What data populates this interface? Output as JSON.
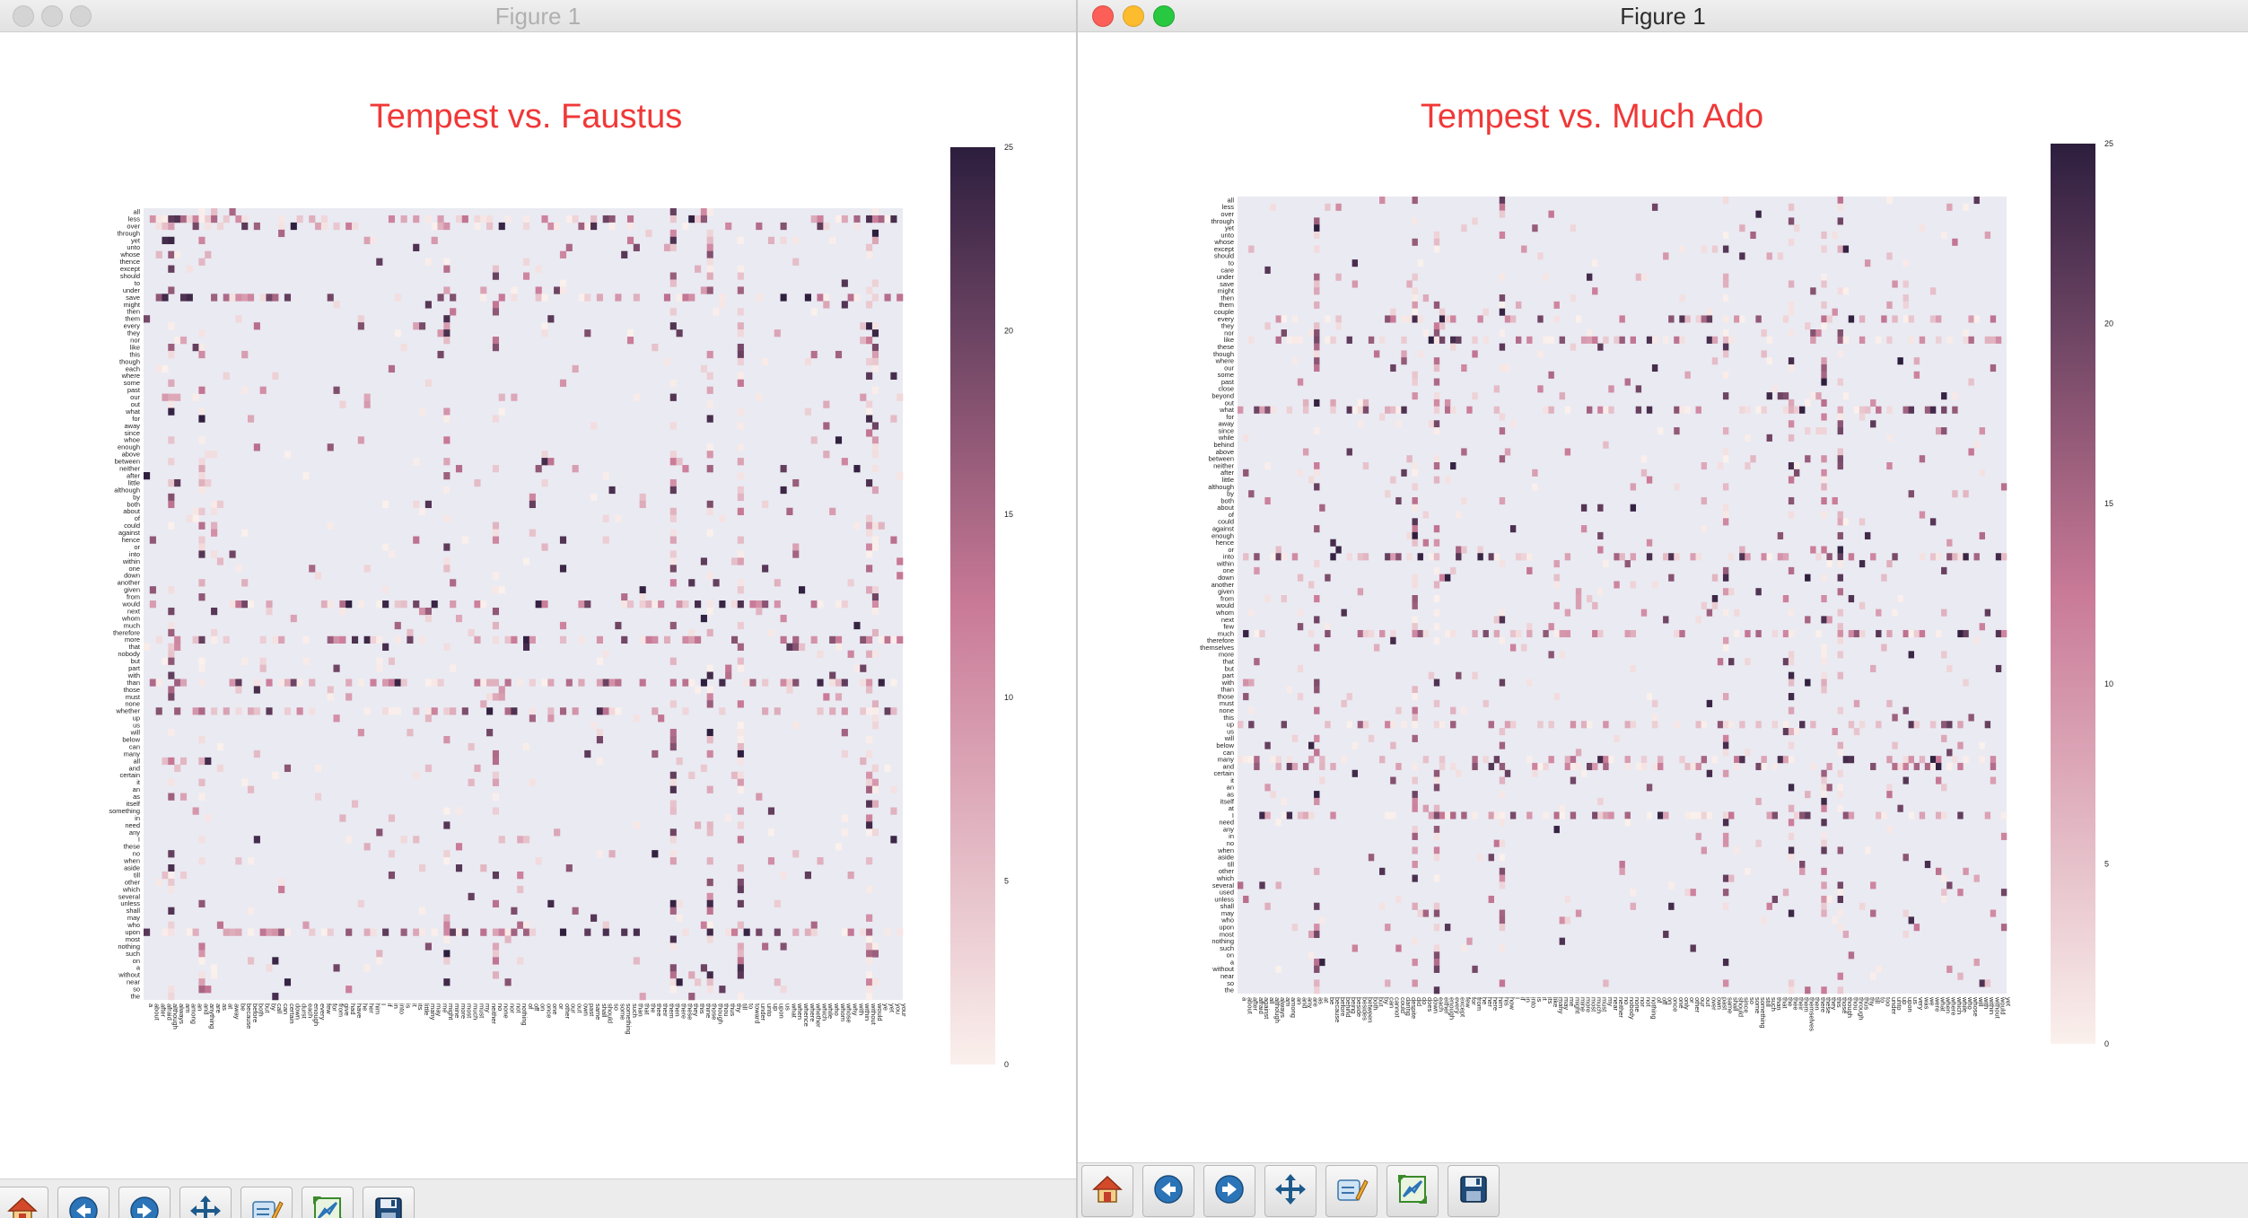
{
  "windows": [
    {
      "id": "left",
      "window_title": "Figure 1",
      "active": false,
      "toolbar": [
        "home-icon",
        "back-icon",
        "forward-icon",
        "pan-icon",
        "configure-subplots-icon",
        "zoom-icon",
        "save-icon"
      ]
    },
    {
      "id": "right",
      "window_title": "Figure 1",
      "active": true,
      "toolbar": [
        "home-icon",
        "back-icon",
        "forward-icon",
        "pan-icon",
        "configure-subplots-icon",
        "zoom-icon",
        "save-icon"
      ]
    }
  ],
  "colors": {
    "title": "#f03838",
    "heatmap_background": "#eaeaf2",
    "colormap_low": "#faf0ec",
    "colormap_mid": "#c97a97",
    "colormap_high": "#2d1e3e"
  },
  "chart_data": [
    {
      "type": "heatmap",
      "title": "Tempest vs. Faustus",
      "xlabel": "",
      "ylabel": "",
      "colorbar_ticks": [
        "25",
        "20",
        "15",
        "10",
        "5",
        "0"
      ],
      "value_range": [
        0,
        25
      ],
      "y_labels": [
        "all",
        "less",
        "over",
        "through",
        "yet",
        "unto",
        "whose",
        "thence",
        "except",
        "should",
        "to",
        "under",
        "save",
        "might",
        "then",
        "them",
        "every",
        "they",
        "nor",
        "like",
        "this",
        "though",
        "each",
        "where",
        "some",
        "past",
        "our",
        "out",
        "what",
        "for",
        "away",
        "since",
        "whoe",
        "enough",
        "above",
        "between",
        "neither",
        "after",
        "little",
        "although",
        "by",
        "both",
        "about",
        "of",
        "could",
        "against",
        "hence",
        "or",
        "into",
        "within",
        "one",
        "down",
        "another",
        "given",
        "from",
        "would",
        "next",
        "whom",
        "much",
        "therefore",
        "more",
        "that",
        "nobody",
        "but",
        "part",
        "with",
        "than",
        "those",
        "must",
        "none",
        "whether",
        "up",
        "us",
        "will",
        "below",
        "can",
        "many",
        "all",
        "and",
        "certain",
        "it",
        "an",
        "as",
        "itself",
        "something",
        "in",
        "need",
        "any",
        "I",
        "these",
        "no",
        "when",
        "aside",
        "till",
        "other",
        "which",
        "several",
        "unless",
        "shall",
        "may",
        "who",
        "upon",
        "most",
        "nothing",
        "such",
        "on",
        "a",
        "without",
        "near",
        "so",
        "the"
      ],
      "x_labels": [
        "a",
        "about",
        "after",
        "afraid",
        "although",
        "always",
        "am",
        "among",
        "an",
        "and",
        "anything",
        "are",
        "as",
        "at",
        "away",
        "be",
        "because",
        "before",
        "both",
        "but",
        "by",
        "call",
        "can",
        "certain",
        "down",
        "durst",
        "each",
        "enough",
        "every",
        "few",
        "for",
        "from",
        "give",
        "had",
        "have",
        "he",
        "her",
        "him",
        "I",
        "if",
        "in",
        "into",
        "is",
        "it",
        "its",
        "little",
        "many",
        "may",
        "me",
        "might",
        "mine",
        "more",
        "most",
        "much",
        "must",
        "my",
        "neither",
        "no",
        "none",
        "nor",
        "not",
        "nothing",
        "of",
        "off",
        "on",
        "once",
        "one",
        "or",
        "other",
        "our",
        "out",
        "own",
        "past",
        "same",
        "shall",
        "should",
        "so",
        "some",
        "something",
        "such",
        "than",
        "that",
        "the",
        "thee",
        "their",
        "them",
        "then",
        "there",
        "these",
        "they",
        "this",
        "thine",
        "those",
        "though",
        "thou",
        "thus",
        "thy",
        "till",
        "to",
        "toward",
        "under",
        "unto",
        "up",
        "upon",
        "us",
        "what",
        "when",
        "whence",
        "where",
        "whether",
        "which",
        "while",
        "who",
        "whom",
        "whose",
        "why",
        "with",
        "within",
        "without",
        "would",
        "ye",
        "yet",
        "you",
        "your"
      ]
    },
    {
      "type": "heatmap",
      "title": "Tempest vs. Much Ado",
      "xlabel": "",
      "ylabel": "",
      "colorbar_ticks": [
        "25",
        "20",
        "15",
        "10",
        "5",
        "0"
      ],
      "value_range": [
        0,
        25
      ],
      "y_labels": [
        "all",
        "less",
        "over",
        "through",
        "yet",
        "unto",
        "whose",
        "except",
        "should",
        "to",
        "care",
        "under",
        "save",
        "might",
        "then",
        "them",
        "couple",
        "every",
        "they",
        "nor",
        "like",
        "these",
        "though",
        "where",
        "our",
        "some",
        "past",
        "close",
        "beyond",
        "out",
        "what",
        "for",
        "away",
        "since",
        "while",
        "behind",
        "above",
        "between",
        "neither",
        "after",
        "little",
        "although",
        "by",
        "both",
        "about",
        "of",
        "could",
        "against",
        "enough",
        "hence",
        "or",
        "into",
        "within",
        "one",
        "down",
        "another",
        "given",
        "from",
        "would",
        "whom",
        "next",
        "few",
        "much",
        "therefore",
        "themselves",
        "more",
        "that",
        "but",
        "part",
        "with",
        "than",
        "those",
        "must",
        "none",
        "this",
        "up",
        "us",
        "will",
        "below",
        "can",
        "many",
        "and",
        "certain",
        "it",
        "an",
        "as",
        "itself",
        "at",
        "I",
        "need",
        "any",
        "in",
        "no",
        "when",
        "aside",
        "till",
        "other",
        "which",
        "several",
        "used",
        "unless",
        "shall",
        "may",
        "who",
        "upon",
        "most",
        "nothing",
        "such",
        "on",
        "a",
        "without",
        "near",
        "so",
        "the"
      ],
      "x_labels": [
        "a",
        "about",
        "after",
        "afraid",
        "against",
        "all",
        "although",
        "always",
        "am",
        "among",
        "an",
        "and",
        "any",
        "are",
        "as",
        "at",
        "be",
        "because",
        "before",
        "behind",
        "being",
        "beside",
        "besides",
        "between",
        "both",
        "but",
        "by",
        "can",
        "cannot",
        "could",
        "daring",
        "despite",
        "did",
        "do",
        "does",
        "down",
        "each",
        "either",
        "enough",
        "every",
        "except",
        "few",
        "for",
        "from",
        "he",
        "her",
        "here",
        "him",
        "his",
        "how",
        "I",
        "if",
        "in",
        "into",
        "is",
        "it",
        "its",
        "like",
        "many",
        "may",
        "me",
        "might",
        "mine",
        "more",
        "most",
        "much",
        "must",
        "my",
        "near",
        "neither",
        "no",
        "nobody",
        "none",
        "nor",
        "not",
        "nothing",
        "of",
        "off",
        "on",
        "once",
        "one",
        "only",
        "or",
        "other",
        "our",
        "out",
        "over",
        "own",
        "past",
        "same",
        "shall",
        "should",
        "since",
        "so",
        "some",
        "something",
        "still",
        "such",
        "than",
        "that",
        "the",
        "thee",
        "their",
        "them",
        "themselves",
        "then",
        "there",
        "these",
        "they",
        "this",
        "those",
        "though",
        "thou",
        "through",
        "thus",
        "thy",
        "till",
        "to",
        "too",
        "under",
        "unto",
        "up",
        "upon",
        "us",
        "very",
        "was",
        "we",
        "were",
        "what",
        "when",
        "where",
        "which",
        "while",
        "who",
        "whose",
        "will",
        "with",
        "within",
        "without",
        "would",
        "yet"
      ]
    }
  ]
}
